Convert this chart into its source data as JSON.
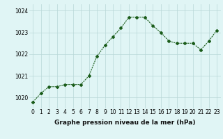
{
  "x": [
    0,
    1,
    2,
    3,
    4,
    5,
    6,
    7,
    8,
    9,
    10,
    11,
    12,
    13,
    14,
    15,
    16,
    17,
    18,
    19,
    20,
    21,
    22,
    23
  ],
  "y": [
    1019.8,
    1020.2,
    1020.5,
    1020.5,
    1020.6,
    1020.6,
    1020.6,
    1021.0,
    1021.9,
    1022.4,
    1022.8,
    1023.2,
    1023.7,
    1023.7,
    1023.7,
    1023.3,
    1023.0,
    1022.6,
    1022.5,
    1022.5,
    1022.5,
    1022.2,
    1022.6,
    1023.1
  ],
  "line_color": "#1a5c1a",
  "marker": "D",
  "marker_size": 2.0,
  "bg_color": "#e0f5f5",
  "grid_color": "#b8d8d8",
  "xlabel": "Graphe pression niveau de la mer (hPa)",
  "xlabel_fontsize": 6.5,
  "tick_fontsize": 5.5,
  "ylim": [
    1019.5,
    1024.3
  ],
  "yticks": [
    1020,
    1021,
    1022,
    1023,
    1024
  ],
  "xticks": [
    0,
    1,
    2,
    3,
    4,
    5,
    6,
    7,
    8,
    9,
    10,
    11,
    12,
    13,
    14,
    15,
    16,
    17,
    18,
    19,
    20,
    21,
    22,
    23
  ]
}
